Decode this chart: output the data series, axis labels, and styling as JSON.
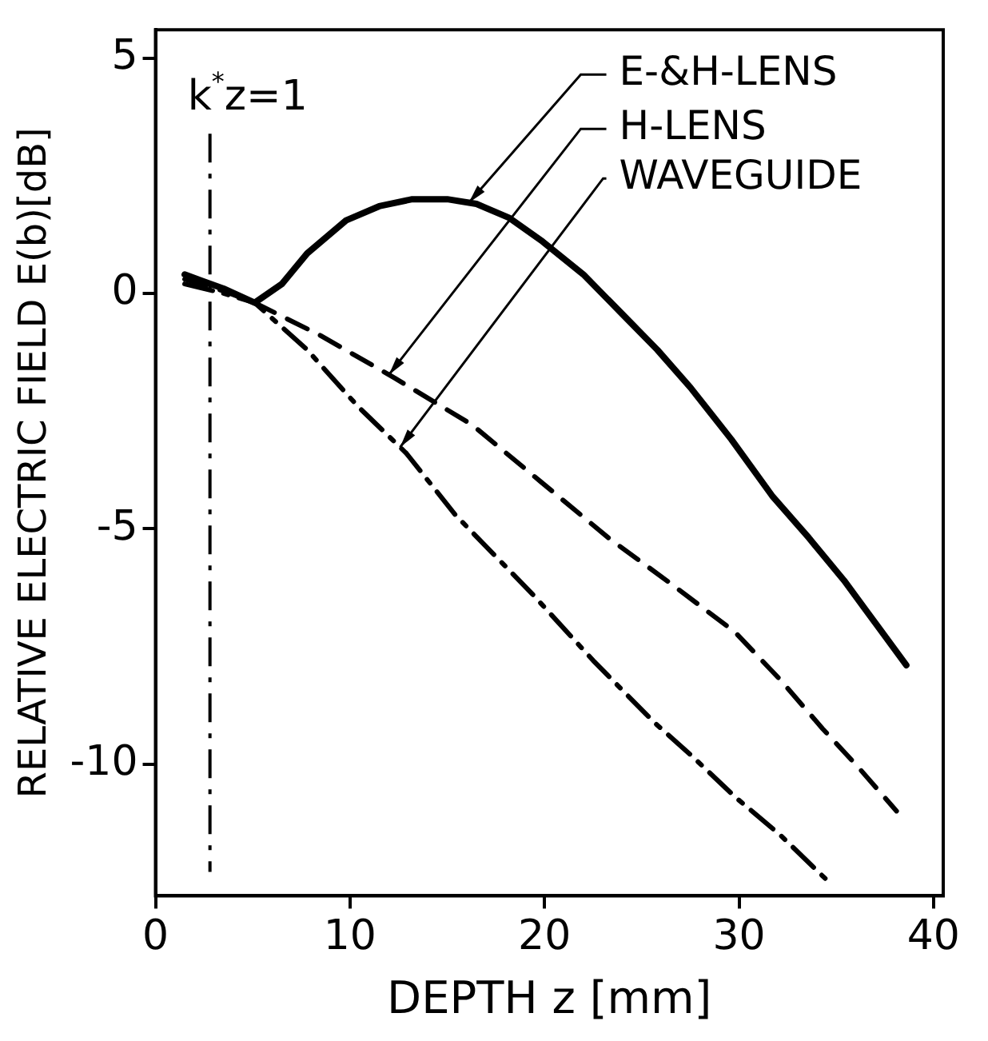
{
  "chart_data": {
    "type": "line",
    "xlabel": "DEPTH z [mm]",
    "ylabel": "RELATIVE ELECTRIC FIELD E(b)[dB]",
    "xlim": [
      0,
      40.5
    ],
    "xticks": [
      0,
      10,
      20,
      30,
      40
    ],
    "ylim": [
      -12.8,
      5.6
    ],
    "yticks": [
      5,
      0,
      -5,
      -10
    ],
    "grid": false,
    "legend": false,
    "marker": "none",
    "ref_lines": [
      {
        "axis": "x",
        "value": 2.8,
        "line_style": "dashdot"
      }
    ],
    "annotations": [
      "k$^{*}$z=1"
    ],
    "series": [
      {
        "name": "E-&H-LENS",
        "color": "#000000",
        "line_style": "solid",
        "x": [
          1.5,
          3.5,
          5.1,
          6.5,
          7.8,
          9.8,
          11.5,
          13.2,
          15,
          16.5,
          18.2,
          19.9,
          22,
          23.9,
          25.8,
          27.5,
          29.6,
          31.7,
          33.6,
          35.4,
          37,
          38.6
        ],
        "values": [
          0.4,
          0.1,
          -0.2,
          0.2,
          0.85,
          1.55,
          1.85,
          2.0,
          2.0,
          1.9,
          1.6,
          1.1,
          0.4,
          -0.4,
          -1.2,
          -2.0,
          -3.1,
          -4.3,
          -5.2,
          -6.1,
          -7.0,
          -7.9
        ]
      },
      {
        "name": "H-LENS",
        "color": "#000000",
        "line_style": "dashed",
        "x": [
          1.5,
          3.5,
          5.1,
          8.5,
          12.3,
          16.3,
          19.8,
          23.3,
          26.6,
          29.8,
          32.1,
          34.3,
          36.2,
          38.1
        ],
        "values": [
          0.3,
          0.05,
          -0.2,
          -0.9,
          -1.8,
          -2.8,
          -4.0,
          -5.2,
          -6.2,
          -7.2,
          -8.2,
          -9.25,
          -10.1,
          -11.0
        ]
      },
      {
        "name": "WAVEGUIDE",
        "color": "#000000",
        "line_style": "dashdot",
        "x": [
          1.5,
          3.5,
          5.1,
          7.8,
          10.4,
          12.9,
          15.4,
          19.4,
          22.5,
          25.6,
          27.5,
          29.8,
          32.1,
          34.6
        ],
        "values": [
          0.2,
          0.0,
          -0.2,
          -1.2,
          -2.4,
          -3.4,
          -4.7,
          -6.4,
          -7.8,
          -9.1,
          -9.8,
          -10.7,
          -11.5,
          -12.5
        ]
      }
    ]
  }
}
